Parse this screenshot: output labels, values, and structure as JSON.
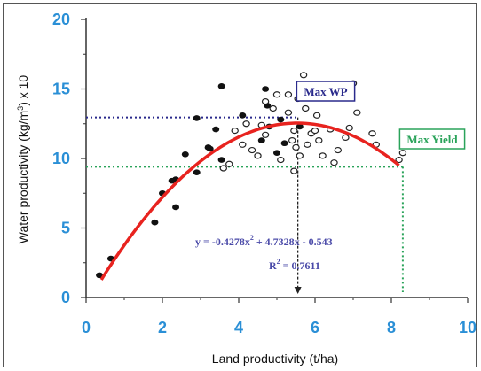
{
  "chart_data": {
    "type": "scatter",
    "xlabel": "Land productivity (t/ha)",
    "ylabel_parts": [
      "Water productivity (kg/m",
      "3",
      ") x 10"
    ],
    "xlim": [
      0,
      10
    ],
    "ylim": [
      0,
      20
    ],
    "xticks": [
      "0",
      "2",
      "4",
      "6",
      "8",
      "10"
    ],
    "yticks": [
      "0",
      "5",
      "10",
      "15",
      "20"
    ],
    "grid": false,
    "series": [
      {
        "marker": "filled",
        "points": [
          [
            0.35,
            1.6
          ],
          [
            0.65,
            2.8
          ],
          [
            1.8,
            5.4
          ],
          [
            2.0,
            7.5
          ],
          [
            2.25,
            8.4
          ],
          [
            2.35,
            8.5
          ],
          [
            2.35,
            6.5
          ],
          [
            2.6,
            10.3
          ],
          [
            2.9,
            9.0
          ],
          [
            2.9,
            12.9
          ],
          [
            3.2,
            10.8
          ],
          [
            3.25,
            10.7
          ],
          [
            3.4,
            12.1
          ],
          [
            3.55,
            9.9
          ],
          [
            3.55,
            15.2
          ],
          [
            4.1,
            13.1
          ],
          [
            4.6,
            11.3
          ],
          [
            4.7,
            15.0
          ],
          [
            4.75,
            13.8
          ],
          [
            4.8,
            12.3
          ],
          [
            5.0,
            10.4
          ],
          [
            5.1,
            12.8
          ],
          [
            5.2,
            11.1
          ],
          [
            5.6,
            12.3
          ]
        ]
      },
      {
        "marker": "open",
        "points": [
          [
            3.6,
            9.3
          ],
          [
            3.75,
            9.6
          ],
          [
            3.9,
            12.0
          ],
          [
            4.1,
            11.0
          ],
          [
            4.2,
            12.5
          ],
          [
            4.35,
            10.6
          ],
          [
            4.5,
            10.2
          ],
          [
            4.6,
            12.4
          ],
          [
            4.7,
            11.7
          ],
          [
            4.7,
            14.1
          ],
          [
            4.9,
            13.6
          ],
          [
            5.0,
            14.6
          ],
          [
            5.1,
            9.9
          ],
          [
            5.3,
            13.3
          ],
          [
            5.4,
            11.3
          ],
          [
            5.45,
            12.0
          ],
          [
            5.5,
            10.8
          ],
          [
            5.55,
            14.3
          ],
          [
            5.6,
            10.2
          ],
          [
            5.7,
            16.0
          ],
          [
            5.75,
            13.6
          ],
          [
            5.8,
            11.0
          ],
          [
            5.9,
            11.8
          ],
          [
            6.0,
            12.0
          ],
          [
            6.05,
            13.1
          ],
          [
            6.2,
            10.2
          ],
          [
            6.4,
            12.1
          ],
          [
            6.5,
            9.7
          ],
          [
            6.6,
            10.6
          ],
          [
            6.8,
            11.5
          ],
          [
            6.9,
            12.2
          ],
          [
            7.0,
            15.4
          ],
          [
            7.1,
            13.3
          ],
          [
            7.5,
            11.8
          ],
          [
            7.6,
            11.0
          ],
          [
            8.2,
            9.9
          ],
          [
            8.3,
            10.4
          ],
          [
            5.45,
            9.1
          ],
          [
            6.1,
            11.3
          ],
          [
            5.3,
            14.6
          ]
        ]
      }
    ],
    "fit": {
      "a": -0.4278,
      "b": 4.7328,
      "c": -0.543,
      "x_range": [
        0.4,
        8.2
      ],
      "equation_parts": [
        "y = -0.4278x",
        "2",
        " + 4.7328x - 0.543"
      ],
      "r2_parts": [
        "R",
        "2",
        " = 0.7611"
      ],
      "color": "#e8231f"
    },
    "annotations": {
      "max_wp": {
        "label": "Max WP",
        "x": 5.55,
        "y": 12.95,
        "color": "#2a2a8c"
      },
      "max_yield": {
        "label": "Max Yield",
        "x": 8.3,
        "y": 9.4,
        "color": "#2aa35a"
      }
    }
  }
}
